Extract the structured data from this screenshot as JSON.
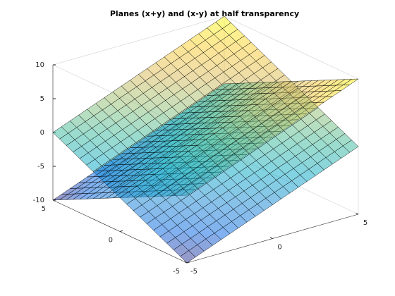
{
  "chart_data": {
    "type": "surface",
    "title": "Planes (x+y) and (x-y) at half transparency",
    "x": [
      -5,
      -4.5,
      -4,
      -3.5,
      -3,
      -2.5,
      -2,
      -1.5,
      -1,
      -0.5,
      0,
      0.5,
      1,
      1.5,
      2,
      2.5,
      3,
      3.5,
      4,
      4.5,
      5
    ],
    "y": [
      -5,
      -4.5,
      -4,
      -3.5,
      -3,
      -2.5,
      -2,
      -1.5,
      -1,
      -0.5,
      0,
      0.5,
      1,
      1.5,
      2,
      2.5,
      3,
      3.5,
      4,
      4.5,
      5
    ],
    "series": [
      {
        "values": [
          [
            -10,
            -9.5,
            -9,
            -8.5,
            -8,
            -7.5,
            -7,
            -6.5,
            -6,
            -5.5,
            -5,
            -4.5,
            -4,
            -3.5,
            -3,
            -2.5,
            -2,
            -1.5,
            -1,
            -0.5,
            0
          ],
          [
            -9.5,
            -9,
            -8.5,
            -8,
            -7.5,
            -7,
            -6.5,
            -6,
            -5.5,
            -5,
            -4.5,
            -4,
            -3.5,
            -3,
            -2.5,
            -2,
            -1.5,
            -1,
            -0.5,
            0,
            0.5
          ],
          [
            -9,
            -8.5,
            -8,
            -7.5,
            -7,
            -6.5,
            -6,
            -5.5,
            -5,
            -4.5,
            -4,
            -3.5,
            -3,
            -2.5,
            -2,
            -1.5,
            -1,
            -0.5,
            0,
            0.5,
            1
          ],
          [
            -8.5,
            -8,
            -7.5,
            -7,
            -6.5,
            -6,
            -5.5,
            -5,
            -4.5,
            -4,
            -3.5,
            -3,
            -2.5,
            -2,
            -1.5,
            -1,
            -0.5,
            0,
            0.5,
            1,
            1.5
          ],
          [
            -8,
            -7.5,
            -7,
            -6.5,
            -6,
            -5.5,
            -5,
            -4.5,
            -4,
            -3.5,
            -3,
            -2.5,
            -2,
            -1.5,
            -1,
            -0.5,
            0,
            0.5,
            1,
            1.5,
            2
          ],
          [
            -7.5,
            -7,
            -6.5,
            -6,
            -5.5,
            -5,
            -4.5,
            -4,
            -3.5,
            -3,
            -2.5,
            -2,
            -1.5,
            -1,
            -0.5,
            0,
            0.5,
            1,
            1.5,
            2,
            2.5
          ],
          [
            -7,
            -6.5,
            -6,
            -5.5,
            -5,
            -4.5,
            -4,
            -3.5,
            -3,
            -2.5,
            -2,
            -1.5,
            -1,
            -0.5,
            0,
            0.5,
            1,
            1.5,
            2,
            2.5,
            3
          ],
          [
            -6.5,
            -6,
            -5.5,
            -5,
            -4.5,
            -4,
            -3.5,
            -3,
            -2.5,
            -2,
            -1.5,
            -1,
            -0.5,
            0,
            0.5,
            1,
            1.5,
            2,
            2.5,
            3,
            3.5
          ],
          [
            -6,
            -5.5,
            -5,
            -4.5,
            -4,
            -3.5,
            -3,
            -2.5,
            -2,
            -1.5,
            -1,
            -0.5,
            0,
            0.5,
            1,
            1.5,
            2,
            2.5,
            3,
            3.5,
            4
          ],
          [
            -5.5,
            -5,
            -4.5,
            -4,
            -3.5,
            -3,
            -2.5,
            -2,
            -1.5,
            -1,
            -0.5,
            0,
            0.5,
            1,
            1.5,
            2,
            2.5,
            3,
            3.5,
            4,
            4.5
          ],
          [
            -5,
            -4.5,
            -4,
            -3.5,
            -3,
            -2.5,
            -2,
            -1.5,
            -1,
            -0.5,
            0,
            0.5,
            1,
            1.5,
            2,
            2.5,
            3,
            3.5,
            4,
            4.5,
            5
          ],
          [
            -4.5,
            -4,
            -3.5,
            -3,
            -2.5,
            -2,
            -1.5,
            -1,
            -0.5,
            0,
            0.5,
            1,
            1.5,
            2,
            2.5,
            3,
            3.5,
            4,
            4.5,
            5,
            5.5
          ],
          [
            -4,
            -3.5,
            -3,
            -2.5,
            -2,
            -1.5,
            -1,
            -0.5,
            0,
            0.5,
            1,
            1.5,
            2,
            2.5,
            3,
            3.5,
            4,
            4.5,
            5,
            5.5,
            6
          ],
          [
            -3.5,
            -3,
            -2.5,
            -2,
            -1.5,
            -1,
            -0.5,
            0,
            0.5,
            1,
            1.5,
            2,
            2.5,
            3,
            3.5,
            4,
            4.5,
            5,
            5.5,
            6,
            6.5
          ],
          [
            -3,
            -2.5,
            -2,
            -1.5,
            -1,
            -0.5,
            0,
            0.5,
            1,
            1.5,
            2,
            2.5,
            3,
            3.5,
            4,
            4.5,
            5,
            5.5,
            6,
            6.5,
            7
          ],
          [
            -2.5,
            -2,
            -1.5,
            -1,
            -0.5,
            0,
            0.5,
            1,
            1.5,
            2,
            2.5,
            3,
            3.5,
            4,
            4.5,
            5,
            5.5,
            6,
            6.5,
            7,
            7.5
          ],
          [
            -2,
            -1.5,
            -1,
            -0.5,
            0,
            0.5,
            1,
            1.5,
            2,
            2.5,
            3,
            3.5,
            4,
            4.5,
            5,
            5.5,
            6,
            6.5,
            7,
            7.5,
            8
          ],
          [
            -1.5,
            -1,
            -0.5,
            0,
            0.5,
            1,
            1.5,
            2,
            2.5,
            3,
            3.5,
            4,
            4.5,
            5,
            5.5,
            6,
            6.5,
            7,
            7.5,
            8,
            8.5
          ],
          [
            -1,
            -0.5,
            0,
            0.5,
            1,
            1.5,
            2,
            2.5,
            3,
            3.5,
            4,
            4.5,
            5,
            5.5,
            6,
            6.5,
            7,
            7.5,
            8,
            8.5,
            9
          ],
          [
            -0.5,
            0,
            0.5,
            1,
            1.5,
            2,
            2.5,
            3,
            3.5,
            4,
            4.5,
            5,
            5.5,
            6,
            6.5,
            7,
            7.5,
            8,
            8.5,
            9,
            9.5
          ],
          [
            0,
            0.5,
            1,
            1.5,
            2,
            2.5,
            3,
            3.5,
            4,
            4.5,
            5,
            5.5,
            6,
            6.5,
            7,
            7.5,
            8,
            8.5,
            9,
            9.5,
            10
          ]
        ]
      },
      {
        "values": [
          [
            0,
            0.5,
            1,
            1.5,
            2,
            2.5,
            3,
            3.5,
            4,
            4.5,
            5,
            5.5,
            6,
            6.5,
            7,
            7.5,
            8,
            8.5,
            9,
            9.5,
            10
          ],
          [
            -0.5,
            0,
            0.5,
            1,
            1.5,
            2,
            2.5,
            3,
            3.5,
            4,
            4.5,
            5,
            5.5,
            6,
            6.5,
            7,
            7.5,
            8,
            8.5,
            9,
            9.5
          ],
          [
            -1,
            -0.5,
            0,
            0.5,
            1,
            1.5,
            2,
            2.5,
            3,
            3.5,
            4,
            4.5,
            5,
            5.5,
            6,
            6.5,
            7,
            7.5,
            8,
            8.5,
            9
          ],
          [
            -1.5,
            -1,
            -0.5,
            0,
            0.5,
            1,
            1.5,
            2,
            2.5,
            3,
            3.5,
            4,
            4.5,
            5,
            5.5,
            6,
            6.5,
            7,
            7.5,
            8,
            8.5
          ],
          [
            -2,
            -1.5,
            -1,
            -0.5,
            0,
            0.5,
            1,
            1.5,
            2,
            2.5,
            3,
            3.5,
            4,
            4.5,
            5,
            5.5,
            6,
            6.5,
            7,
            7.5,
            8
          ],
          [
            -2.5,
            -2,
            -1.5,
            -1,
            -0.5,
            0,
            0.5,
            1,
            1.5,
            2,
            2.5,
            3,
            3.5,
            4,
            4.5,
            5,
            5.5,
            6,
            6.5,
            7,
            7.5
          ],
          [
            -3,
            -2.5,
            -2,
            -1.5,
            -1,
            -0.5,
            0,
            0.5,
            1,
            1.5,
            2,
            2.5,
            3,
            3.5,
            4,
            4.5,
            5,
            5.5,
            6,
            6.5,
            7
          ],
          [
            -3.5,
            -3,
            -2.5,
            -2,
            -1.5,
            -1,
            -0.5,
            0,
            0.5,
            1,
            1.5,
            2,
            2.5,
            3,
            3.5,
            4,
            4.5,
            5,
            5.5,
            6,
            6.5
          ],
          [
            -4,
            -3.5,
            -3,
            -2.5,
            -2,
            -1.5,
            -1,
            -0.5,
            0,
            0.5,
            1,
            1.5,
            2,
            2.5,
            3,
            3.5,
            4,
            4.5,
            5,
            5.5,
            6
          ],
          [
            -4.5,
            -4,
            -3.5,
            -3,
            -2.5,
            -2,
            -1.5,
            -1,
            -0.5,
            0,
            0.5,
            1,
            1.5,
            2,
            2.5,
            3,
            3.5,
            4,
            4.5,
            5,
            5.5
          ],
          [
            -5,
            -4.5,
            -4,
            -3.5,
            -3,
            -2.5,
            -2,
            -1.5,
            -1,
            -0.5,
            0,
            0.5,
            1,
            1.5,
            2,
            2.5,
            3,
            3.5,
            4,
            4.5,
            5
          ],
          [
            -5.5,
            -5,
            -4.5,
            -4,
            -3.5,
            -3,
            -2.5,
            -2,
            -1.5,
            -1,
            -0.5,
            0,
            0.5,
            1,
            1.5,
            2,
            2.5,
            3,
            3.5,
            4,
            4.5
          ],
          [
            -6,
            -5.5,
            -5,
            -4.5,
            -4,
            -3.5,
            -3,
            -2.5,
            -2,
            -1.5,
            -1,
            -0.5,
            0,
            0.5,
            1,
            1.5,
            2,
            2.5,
            3,
            3.5,
            4
          ],
          [
            -6.5,
            -6,
            -5.5,
            -5,
            -4.5,
            -4,
            -3.5,
            -3,
            -2.5,
            -2,
            -1.5,
            -1,
            -0.5,
            0,
            0.5,
            1,
            1.5,
            2,
            2.5,
            3,
            3.5
          ],
          [
            -7,
            -6.5,
            -6,
            -5.5,
            -5,
            -4.5,
            -4,
            -3.5,
            -3,
            -2.5,
            -2,
            -1.5,
            -1,
            -0.5,
            0,
            0.5,
            1,
            1.5,
            2,
            2.5,
            3
          ],
          [
            -7.5,
            -7,
            -6.5,
            -6,
            -5.5,
            -5,
            -4.5,
            -4,
            -3.5,
            -3,
            -2.5,
            -2,
            -1.5,
            -1,
            -0.5,
            0,
            0.5,
            1,
            1.5,
            2,
            2.5
          ],
          [
            -8,
            -7.5,
            -7,
            -6.5,
            -6,
            -5.5,
            -5,
            -4.5,
            -4,
            -3.5,
            -3,
            -2.5,
            -2,
            -1.5,
            -1,
            -0.5,
            0,
            0.5,
            1,
            1.5,
            2
          ],
          [
            -8.5,
            -8,
            -7.5,
            -7,
            -6.5,
            -6,
            -5.5,
            -5,
            -4.5,
            -4,
            -3.5,
            -3,
            -2.5,
            -2,
            -1.5,
            -1,
            -0.5,
            0,
            0.5,
            1,
            1.5
          ],
          [
            -9,
            -8.5,
            -8,
            -7.5,
            -7,
            -6.5,
            -6,
            -5.5,
            -5,
            -4.5,
            -4,
            -3.5,
            -3,
            -2.5,
            -2,
            -1.5,
            -1,
            -0.5,
            0,
            0.5,
            1
          ],
          [
            -9.5,
            -9,
            -8.5,
            -8,
            -7.5,
            -7,
            -6.5,
            -6,
            -5.5,
            -5,
            -4.5,
            -4,
            -3.5,
            -3,
            -2.5,
            -2,
            -1.5,
            -1,
            -0.5,
            0,
            0.5
          ],
          [
            -10,
            -9.5,
            -9,
            -8.5,
            -8,
            -7.5,
            -7,
            -6.5,
            -6,
            -5.5,
            -5,
            -4.5,
            -4,
            -3.5,
            -3,
            -2.5,
            -2,
            -1.5,
            -1,
            -0.5,
            0
          ]
        ]
      }
    ],
    "xlim": [
      -5,
      5
    ],
    "ylim": [
      -5,
      5
    ],
    "zlim": [
      -10,
      10
    ],
    "xticks": [
      -5,
      0,
      5
    ],
    "yticks": [
      -5,
      0,
      5
    ],
    "zticks": [
      -10,
      -5,
      0,
      5,
      10
    ],
    "colormap": [
      "#352a87",
      "#0363e1",
      "#1485d4",
      "#06a7c6",
      "#38b99e",
      "#92bf73",
      "#d9ba56",
      "#fcce2e",
      "#f9fb0e"
    ],
    "alpha": 0.5,
    "edgecolor": "#000000"
  }
}
